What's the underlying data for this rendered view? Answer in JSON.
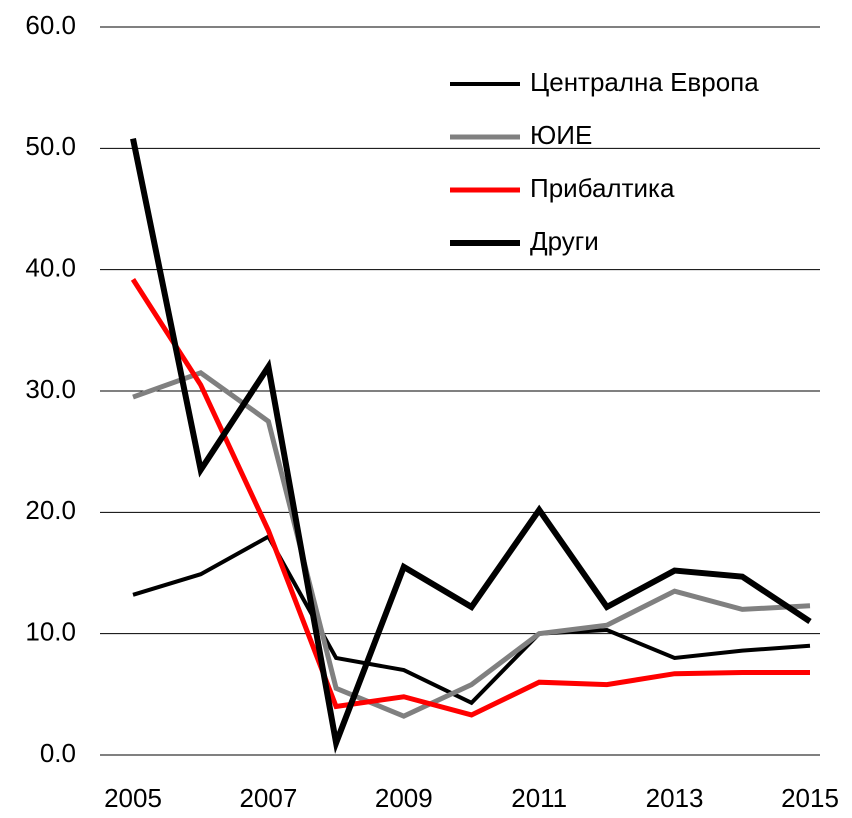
{
  "chart_data": {
    "type": "line",
    "x": [
      2005,
      2006,
      2007,
      2008,
      2009,
      2010,
      2011,
      2012,
      2013,
      2014,
      2015
    ],
    "xlim": [
      2005,
      2015
    ],
    "xticks": [
      2005,
      2007,
      2009,
      2011,
      2013,
      2015
    ],
    "ylim": [
      0,
      60
    ],
    "yticks": [
      {
        "value": 0,
        "label": "0.0"
      },
      {
        "value": 10,
        "label": "10.0"
      },
      {
        "value": 20,
        "label": "20.0"
      },
      {
        "value": 30,
        "label": "30.0"
      },
      {
        "value": 40,
        "label": "40.0"
      },
      {
        "value": 50,
        "label": "50.0"
      },
      {
        "value": 60,
        "label": "60.0"
      }
    ],
    "grid": true,
    "legend": "upper right",
    "series": [
      {
        "name": "Централна Европа",
        "color": "#000000",
        "values": [
          13.2,
          14.9,
          18.0,
          8.0,
          7.0,
          4.3,
          10.0,
          10.3,
          8.0,
          8.6,
          9.0
        ]
      },
      {
        "name": "ЮИЕ",
        "color": "#808080",
        "values": [
          29.5,
          31.5,
          27.5,
          5.5,
          3.2,
          5.8,
          10.0,
          10.7,
          13.5,
          12.0,
          12.3
        ]
      },
      {
        "name": "Прибалтика",
        "color": "#ff0000",
        "values": [
          39.2,
          30.5,
          18.5,
          4.0,
          4.8,
          3.3,
          6.0,
          5.8,
          6.7,
          6.8,
          6.8
        ]
      },
      {
        "name": "Други",
        "color": "#000000",
        "values": [
          50.8,
          23.5,
          32.0,
          1.0,
          15.5,
          12.2,
          20.2,
          12.2,
          15.2,
          14.7,
          11.0
        ]
      }
    ]
  }
}
